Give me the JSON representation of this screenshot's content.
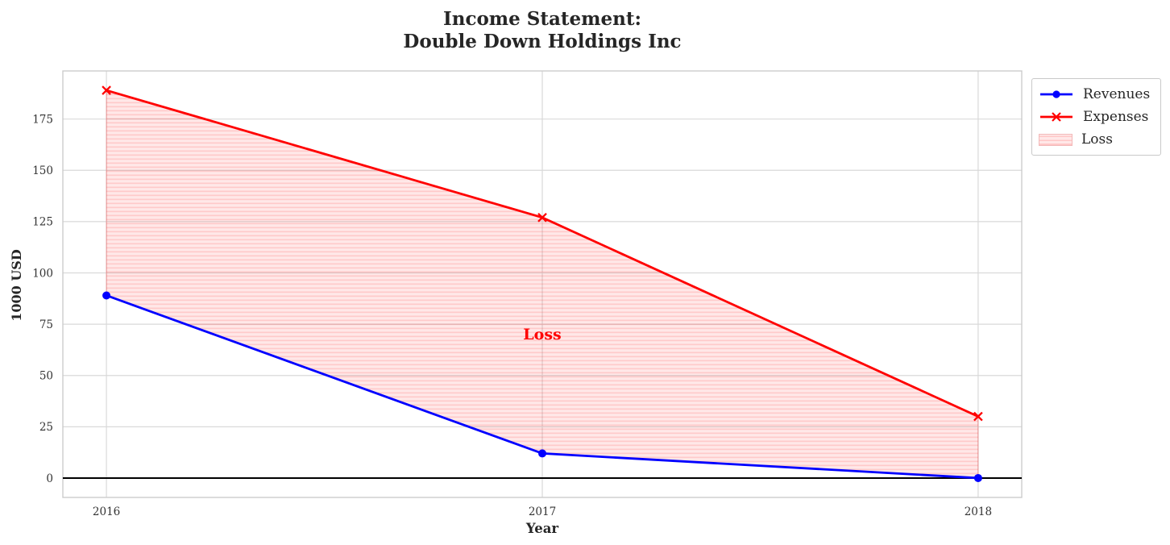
{
  "title": {
    "line1": "Income Statement:",
    "line2": "Double Down Holdings Inc"
  },
  "chart_data": {
    "type": "line",
    "title": "Income Statement:\nDouble Down Holdings Inc",
    "xlabel": "Year",
    "ylabel": "1000 USD",
    "x": [
      2016,
      2017,
      2018
    ],
    "x_tick_labels": [
      "2016",
      "2017",
      "2018"
    ],
    "y_ticks": [
      0,
      25,
      50,
      75,
      100,
      125,
      150,
      175
    ],
    "xlim": [
      2015.9,
      2018.1
    ],
    "ylim": [
      -9.45,
      198.45
    ],
    "grid": true,
    "series": [
      {
        "name": "Revenues",
        "color": "#0000ff",
        "marker": "circle",
        "values": [
          89,
          12,
          0
        ]
      },
      {
        "name": "Expenses",
        "color": "#ff0000",
        "marker": "x",
        "values": [
          189,
          127,
          30
        ]
      }
    ],
    "fill_between": {
      "label": "Loss",
      "between": [
        "Revenues",
        "Expenses"
      ],
      "base_color": "#ff0000",
      "hatch": "horizontal"
    },
    "annotation": {
      "text": "Loss",
      "x": 2017,
      "y": 70,
      "color": "#ff0000"
    },
    "zero_line_color": "#000000",
    "legend": {
      "position": "upper right outside",
      "entries": [
        "Revenues",
        "Expenses",
        "Loss"
      ]
    }
  },
  "colors": {
    "grid": "#d9d9d9",
    "spine": "#cccccc",
    "text": "#262626",
    "tick_text": "#333333"
  }
}
